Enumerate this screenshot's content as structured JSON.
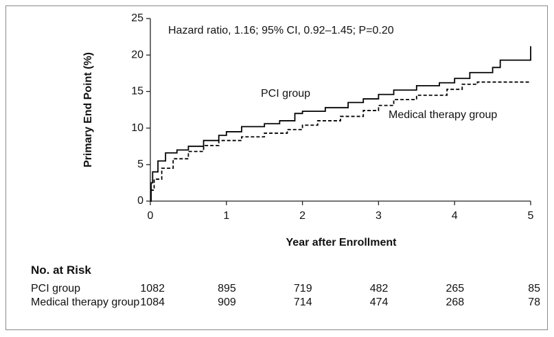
{
  "chart_data": {
    "type": "step",
    "annotation": "Hazard ratio, 1.16; 95% CI, 0.92–1.45; P=0.20",
    "x_label": "Year after Enrollment",
    "y_label": "Primary End Point (%)",
    "xlim": [
      0,
      5
    ],
    "xticks": [
      0,
      1,
      2,
      3,
      4,
      5
    ],
    "ylim": [
      0,
      25
    ],
    "yticks": [
      0,
      5,
      10,
      15,
      20,
      25
    ],
    "series": [
      {
        "name": "PCI group",
        "color": "#000000",
        "dashed": false,
        "x": [
          0,
          0.01,
          0.03,
          0.1,
          0.2,
          0.35,
          0.5,
          0.7,
          0.9,
          1.0,
          1.2,
          1.5,
          1.7,
          1.9,
          2.0,
          2.3,
          2.6,
          2.8,
          3.0,
          3.2,
          3.5,
          3.8,
          4.0,
          4.2,
          4.5,
          4.6,
          4.99,
          5.0
        ],
        "values": [
          0,
          2.5,
          4,
          5.5,
          6.6,
          7,
          7.5,
          8.3,
          9,
          9.5,
          10.2,
          10.6,
          11,
          12,
          12.3,
          12.8,
          13.5,
          14,
          14.6,
          15.2,
          15.8,
          16.2,
          16.8,
          17.6,
          18.3,
          19.3,
          19.3,
          21.2
        ]
      },
      {
        "name": "Medical therapy group",
        "color": "#000000",
        "dashed": true,
        "x": [
          0,
          0.01,
          0.05,
          0.15,
          0.3,
          0.5,
          0.7,
          0.9,
          1.2,
          1.5,
          1.8,
          2.0,
          2.2,
          2.5,
          2.8,
          3.0,
          3.2,
          3.5,
          3.9,
          4.1,
          4.3,
          5.0
        ],
        "values": [
          0,
          1.5,
          3,
          4.5,
          5.8,
          6.8,
          7.6,
          8.3,
          8.8,
          9.3,
          9.8,
          10.4,
          11,
          11.6,
          12.4,
          13.1,
          13.9,
          14.5,
          15.3,
          16,
          16.3,
          16.3
        ]
      }
    ],
    "at_risk": {
      "title": "No. at Risk",
      "rows": [
        {
          "label": "PCI group",
          "values": [
            1082,
            895,
            719,
            482,
            265,
            85
          ]
        },
        {
          "label": "Medical therapy group",
          "values": [
            1084,
            909,
            714,
            474,
            268,
            78
          ]
        }
      ]
    }
  }
}
